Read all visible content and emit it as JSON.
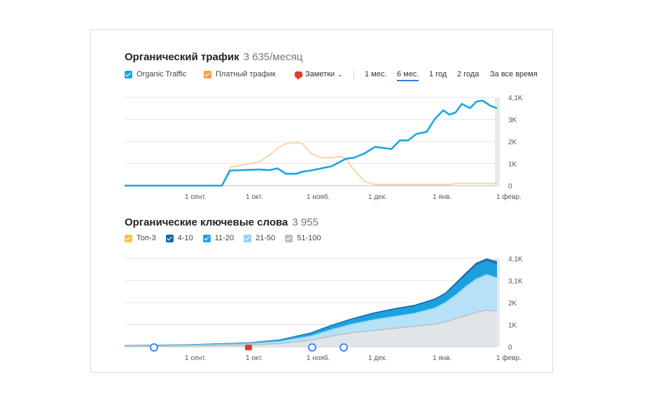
{
  "traffic": {
    "title": "Органический трафик",
    "value": "3 635/месяц",
    "legend": [
      {
        "label": "Organic Traffic",
        "color": "#1aa6e4"
      },
      {
        "label": "Платный трафик",
        "color": "#f5a04b"
      }
    ],
    "notes_label": "Заметки",
    "ranges": [
      "1 мес.",
      "6 мес.",
      "1 год",
      "2 года",
      "За все время"
    ],
    "active_range": "6 мес."
  },
  "keywords": {
    "title": "Органические ключевые слова",
    "value": "3 955",
    "legend": [
      {
        "label": "Топ-3",
        "color": "#f6c244"
      },
      {
        "label": "4-10",
        "color": "#1467a8"
      },
      {
        "label": "11-20",
        "color": "#1aa6e4"
      },
      {
        "label": "21-50",
        "color": "#8fd2f3"
      },
      {
        "label": "51-100",
        "color": "#bdbdbd"
      }
    ]
  },
  "chart_data": [
    {
      "type": "line",
      "title": "Органический трафик",
      "x_ticks": [
        "1 сент.",
        "1 окт.",
        "1 нояб.",
        "1 дек.",
        "1 янв.",
        "1 февр."
      ],
      "y_ticks": [
        "0",
        "1K",
        "2K",
        "3K",
        "4,1K"
      ],
      "ylim": [
        0,
        4100
      ],
      "x": [
        0,
        14,
        28,
        32,
        35,
        39,
        47,
        51,
        65,
        70,
        74,
        78,
        83,
        86,
        90,
        95,
        100,
        104,
        107,
        111,
        116,
        121,
        129,
        133,
        137,
        141,
        146,
        150,
        154,
        157,
        160,
        163,
        167,
        170,
        173,
        177,
        180
      ],
      "series": [
        {
          "name": "Organic Traffic",
          "color": "#1aa6e4",
          "values": [
            0,
            0,
            0,
            0,
            0,
            0,
            0,
            700,
            750,
            720,
            800,
            550,
            550,
            650,
            700,
            800,
            900,
            1100,
            1250,
            1300,
            1500,
            1800,
            1700,
            2100,
            2100,
            2400,
            2500,
            3100,
            3500,
            3300,
            3400,
            3800,
            3600,
            3900,
            3950,
            3700,
            3600
          ]
        },
        {
          "name": "Платный трафик",
          "color": "#f5a04b",
          "values": [
            0,
            0,
            0,
            0,
            0,
            0,
            0,
            850,
            1100,
            1400,
            1750,
            1950,
            2000,
            1950,
            1500,
            1300,
            1300,
            1350,
            1250,
            700,
            200,
            50,
            50,
            50,
            50,
            50,
            50,
            50,
            50,
            50,
            100,
            100,
            100,
            100,
            100,
            100,
            100
          ]
        }
      ]
    },
    {
      "type": "area",
      "title": "Органические ключевые слова",
      "x_ticks": [
        "1 сент.",
        "1 окт.",
        "1 нояб.",
        "1 дек.",
        "1 янв.",
        "1 февр."
      ],
      "y_ticks": [
        "0",
        "1K",
        "2K",
        "3,1K",
        "4,1K"
      ],
      "ylim": [
        0,
        4100
      ],
      "x": [
        0,
        30,
        60,
        75,
        90,
        100,
        110,
        120,
        130,
        140,
        150,
        155,
        160,
        165,
        170,
        175,
        180
      ],
      "series": [
        {
          "name": "51-100",
          "color": "#bdbdbd",
          "values": [
            20,
            40,
            80,
            150,
            300,
            500,
            650,
            750,
            850,
            950,
            1050,
            1150,
            1300,
            1450,
            1600,
            1700,
            1650
          ]
        },
        {
          "name": "21-50",
          "color": "#8fd2f3",
          "values": [
            40,
            70,
            140,
            250,
            500,
            800,
            1050,
            1250,
            1400,
            1550,
            1800,
            2050,
            2400,
            2800,
            3150,
            3350,
            3200
          ]
        },
        {
          "name": "11-20",
          "color": "#1aa6e4",
          "values": [
            50,
            80,
            170,
            300,
            600,
            950,
            1250,
            1500,
            1700,
            1850,
            2150,
            2400,
            2850,
            3300,
            3750,
            3950,
            3800
          ]
        },
        {
          "name": "4-10",
          "color": "#1467a8",
          "values": [
            55,
            90,
            180,
            320,
            640,
            1000,
            1300,
            1560,
            1760,
            1920,
            2220,
            2480,
            2950,
            3420,
            3880,
            4080,
            3950
          ]
        }
      ],
      "annotations": [
        "G",
        "G",
        "G"
      ]
    }
  ]
}
